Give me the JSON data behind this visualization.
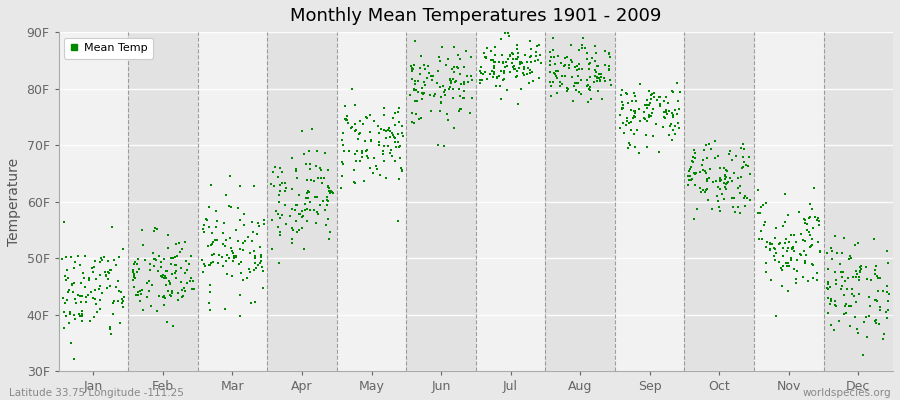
{
  "title": "Monthly Mean Temperatures 1901 - 2009",
  "ylabel": "Temperature",
  "xlabel_labels": [
    "Jan",
    "Feb",
    "Mar",
    "Apr",
    "May",
    "Jun",
    "Jul",
    "Aug",
    "Sep",
    "Oct",
    "Nov",
    "Dec"
  ],
  "subtitle": "Latitude 33.75 Longitude -111.25",
  "watermark": "worldspecies.org",
  "legend_label": "Mean Temp",
  "ylim": [
    30,
    90
  ],
  "yticks": [
    30,
    40,
    50,
    60,
    70,
    80,
    90
  ],
  "ytick_labels": [
    "30F",
    "40F",
    "50F",
    "60F",
    "70F",
    "80F",
    "90F"
  ],
  "dot_color": "#008800",
  "bg_color": "#e8e8e8",
  "band_light": "#f2f2f2",
  "band_dark": "#e2e2e2",
  "n_years": 109,
  "monthly_means": [
    44.0,
    46.5,
    52.0,
    61.0,
    70.5,
    80.0,
    84.5,
    82.5,
    75.5,
    64.5,
    52.5,
    44.5
  ],
  "monthly_stds": [
    4.5,
    4.0,
    4.5,
    4.5,
    4.0,
    3.5,
    2.5,
    2.5,
    3.0,
    3.5,
    4.5,
    4.5
  ]
}
